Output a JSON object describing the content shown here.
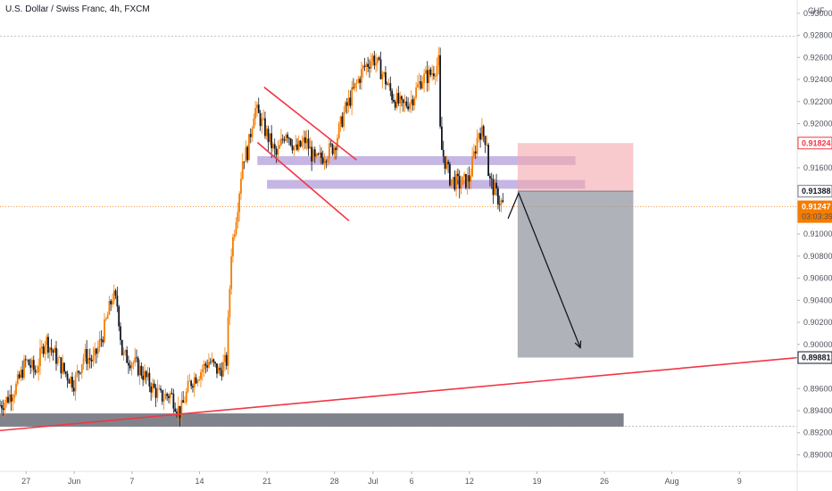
{
  "chart_data": {
    "type": "candlestick",
    "title": "U.S. Dollar / Swiss Franc, 4h, FXCM",
    "currency": "CHF",
    "y_ticks": [
      "0.93000",
      "0.92800",
      "0.92600",
      "0.92400",
      "0.92200",
      "0.92000",
      "0.91600",
      "0.91000",
      "0.90800",
      "0.90600",
      "0.90400",
      "0.90200",
      "0.90000",
      "0.89600",
      "0.89400",
      "0.89200",
      "0.89000"
    ],
    "x_ticks": [
      {
        "label": "27",
        "day": 27
      },
      {
        "label": "Jun",
        "day": 32
      },
      {
        "label": "7",
        "day": 38
      },
      {
        "label": "14",
        "day": 45
      },
      {
        "label": "21",
        "day": 52
      },
      {
        "label": "28",
        "day": 59
      },
      {
        "label": "Jul",
        "day": 63
      },
      {
        "label": "6",
        "day": 67
      },
      {
        "label": "12",
        "day": 73
      },
      {
        "label": "19",
        "day": 80
      },
      {
        "label": "26",
        "day": 87
      },
      {
        "label": "Aug",
        "day": 94
      },
      {
        "label": "9",
        "day": 101
      }
    ],
    "ylim": [
      0.8885,
      0.9312
    ],
    "xlim": [
      24.3,
      107
    ],
    "price_badges": [
      {
        "value": "0.91824",
        "type": "target-red"
      },
      {
        "value": "0.91388",
        "type": "entry-gray"
      },
      {
        "value": "0.91247",
        "type": "last-price",
        "countdown": "03:03:39"
      },
      {
        "value": "0.89881",
        "type": "stop-dark"
      }
    ],
    "last_price": 0.91247,
    "dashed_levels": [
      0.9279,
      0.8926
    ],
    "close_path": [
      [
        24.3,
        0.8945
      ],
      [
        25,
        0.895
      ],
      [
        26,
        0.8962
      ],
      [
        27,
        0.8985
      ],
      [
        28,
        0.8975
      ],
      [
        29,
        0.9005
      ],
      [
        30,
        0.899
      ],
      [
        31,
        0.8975
      ],
      [
        32,
        0.8965
      ],
      [
        33,
        0.899
      ],
      [
        34,
        0.8985
      ],
      [
        35,
        0.901
      ],
      [
        36,
        0.9045
      ],
      [
        36.5,
        0.9035
      ],
      [
        37,
        0.899
      ],
      [
        38,
        0.8985
      ],
      [
        39,
        0.8975
      ],
      [
        40,
        0.8962
      ],
      [
        41,
        0.8952
      ],
      [
        42,
        0.8955
      ],
      [
        43,
        0.8938
      ],
      [
        44,
        0.8965
      ],
      [
        45,
        0.8975
      ],
      [
        46,
        0.8985
      ],
      [
        47,
        0.8975
      ],
      [
        47.8,
        0.8985
      ],
      [
        48.3,
        0.9085
      ],
      [
        49,
        0.913
      ],
      [
        49.5,
        0.917
      ],
      [
        50,
        0.9175
      ],
      [
        50.7,
        0.9215
      ],
      [
        51.5,
        0.92
      ],
      [
        52,
        0.919
      ],
      [
        53,
        0.917
      ],
      [
        54,
        0.9195
      ],
      [
        55,
        0.9175
      ],
      [
        56,
        0.9185
      ],
      [
        57,
        0.9165
      ],
      [
        58,
        0.9172
      ],
      [
        59,
        0.918
      ],
      [
        60,
        0.921
      ],
      [
        61,
        0.923
      ],
      [
        62,
        0.925
      ],
      [
        63,
        0.926
      ],
      [
        64,
        0.9245
      ],
      [
        65,
        0.9225
      ],
      [
        66,
        0.9215
      ],
      [
        67,
        0.9222
      ],
      [
        68,
        0.924
      ],
      [
        69,
        0.9245
      ],
      [
        69.8,
        0.9255
      ],
      [
        70,
        0.918
      ],
      [
        71,
        0.915
      ],
      [
        72,
        0.9145
      ],
      [
        73,
        0.915
      ],
      [
        74,
        0.9195
      ],
      [
        74.8,
        0.9185
      ],
      [
        75,
        0.915
      ],
      [
        76,
        0.9132
      ],
      [
        76.6,
        0.9125
      ]
    ],
    "trendline": {
      "from": [
        24.3,
        0.8922
      ],
      "to": [
        107,
        0.8988
      ],
      "color": "#f23645"
    },
    "channel_upper": {
      "from": [
        51.7,
        0.9233
      ],
      "to": [
        61.3,
        0.9167
      ],
      "color": "#f23645"
    },
    "channel_lower": {
      "from": [
        51,
        0.9183
      ],
      "to": [
        60.5,
        0.9112
      ],
      "color": "#f23645"
    },
    "zones": [
      {
        "name": "resistance-band-upper",
        "x1": 51,
        "x2": 84,
        "y1": 0.91705,
        "y2": 0.91625,
        "color": "#b39ddb"
      },
      {
        "name": "resistance-band-lower",
        "x1": 52,
        "x2": 85,
        "y1": 0.9149,
        "y2": 0.9141,
        "color": "#b39ddb"
      },
      {
        "name": "support-band",
        "x1": 24.3,
        "x2": 89,
        "y1": 0.89375,
        "y2": 0.89255,
        "color": "#6a6d78"
      }
    ],
    "position": {
      "x1": 78,
      "x2": 90,
      "entry": 0.91388,
      "target": 0.91824,
      "stop": 0.89881,
      "upper_color": "#f4a6ab",
      "lower_color": "#9598a1"
    },
    "arrow_path": [
      [
        77,
        0.9114
      ],
      [
        78.1,
        0.9137
      ],
      [
        84.5,
        0.8997
      ]
    ],
    "candle_up_color": "#f57c00",
    "candle_down_color": "#131722"
  }
}
